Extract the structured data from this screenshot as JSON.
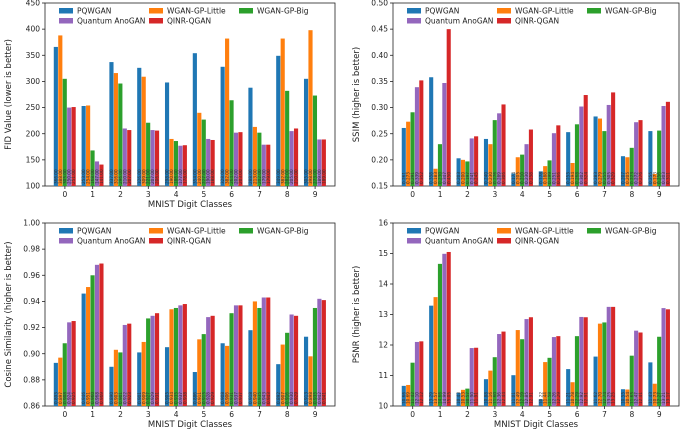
{
  "legend_labels": [
    "PQWGAN",
    "WGAN-GP-Little",
    "WGAN-GP-Big",
    "Quantum AnoGAN",
    "QINR-QGAN"
  ],
  "colors": [
    "#1f77b4",
    "#ff7f0e",
    "#2ca02c",
    "#9467bd",
    "#d62728"
  ],
  "chart_data": [
    {
      "type": "bar",
      "categories": [
        "0",
        "1",
        "2",
        "3",
        "4",
        "5",
        "6",
        "7",
        "8",
        "9"
      ],
      "xlabel": "MNIST Digit Classes",
      "ylabel": "FID Value (lower is better)",
      "ylim": [
        100,
        450
      ],
      "yticks": [
        "100",
        "150",
        "200",
        "250",
        "300",
        "350",
        "400",
        "450"
      ],
      "legend": "top",
      "series": [
        {
          "name": "PQWGAN",
          "values": [
            366,
            253,
            337,
            326,
            298,
            354,
            328,
            288,
            349,
            305
          ]
        },
        {
          "name": "WGAN-GP-Little",
          "values": [
            388,
            254,
            316,
            309,
            190,
            240,
            382,
            213,
            382,
            398
          ]
        },
        {
          "name": "WGAN-GP-Big",
          "values": [
            305,
            168,
            296,
            221,
            186,
            227,
            264,
            202,
            282,
            273
          ]
        },
        {
          "name": "Quantum AnoGAN",
          "values": [
            250,
            147,
            210,
            207,
            177,
            190,
            202,
            179,
            205,
            189
          ]
        },
        {
          "name": "QINR-QGAN",
          "values": [
            251,
            141,
            207,
            206,
            178,
            188,
            203,
            179,
            210,
            189
          ]
        }
      ]
    },
    {
      "type": "bar",
      "categories": [
        "0",
        "1",
        "2",
        "3",
        "4",
        "5",
        "6",
        "7",
        "8",
        "9"
      ],
      "xlabel": "",
      "ylabel": "SSIM (higher is better)",
      "ylim": [
        0.15,
        0.5
      ],
      "yticks": [
        "0.15",
        "0.20",
        "0.25",
        "0.30",
        "0.35",
        "0.40",
        "0.45",
        "0.50"
      ],
      "legend": "top",
      "series": [
        {
          "name": "PQWGAN",
          "values": [
            0.261,
            0.358,
            0.203,
            0.24,
            0.174,
            0.178,
            0.253,
            0.283,
            0.207,
            0.255
          ]
        },
        {
          "name": "WGAN-GP-Little",
          "values": [
            0.273,
            0.183,
            0.2,
            0.23,
            0.205,
            0.188,
            0.194,
            0.279,
            0.205,
            0.173
          ]
        },
        {
          "name": "WGAN-GP-Big",
          "values": [
            0.291,
            0.23,
            0.197,
            0.276,
            0.21,
            0.199,
            0.268,
            0.255,
            0.223,
            0.256
          ]
        },
        {
          "name": "Quantum AnoGAN",
          "values": [
            0.339,
            0.347,
            0.241,
            0.289,
            0.23,
            0.251,
            0.302,
            0.305,
            0.272,
            0.303
          ]
        },
        {
          "name": "QINR-QGAN",
          "values": [
            0.352,
            0.45,
            0.245,
            0.306,
            0.258,
            0.266,
            0.324,
            0.329,
            0.276,
            0.311
          ]
        }
      ]
    },
    {
      "type": "bar",
      "categories": [
        "0",
        "1",
        "2",
        "3",
        "4",
        "5",
        "6",
        "7",
        "8",
        "9"
      ],
      "xlabel": "MNIST Digit Classes",
      "ylabel": "Cosine Similarity (higher is better)",
      "ylim": [
        0.86,
        1.0
      ],
      "yticks": [
        "0.86",
        "0.88",
        "0.90",
        "0.92",
        "0.94",
        "0.96",
        "0.98",
        "1.00"
      ],
      "legend": "top",
      "series": [
        {
          "name": "PQWGAN",
          "values": [
            0.893,
            0.946,
            0.89,
            0.901,
            0.905,
            0.886,
            0.908,
            0.918,
            0.892,
            0.913
          ]
        },
        {
          "name": "WGAN-GP-Little",
          "values": [
            0.897,
            0.951,
            0.903,
            0.909,
            0.934,
            0.911,
            0.906,
            0.94,
            0.907,
            0.898
          ]
        },
        {
          "name": "WGAN-GP-Big",
          "values": [
            0.908,
            0.96,
            0.901,
            0.927,
            0.935,
            0.915,
            0.931,
            0.935,
            0.916,
            0.935
          ]
        },
        {
          "name": "Quantum AnoGAN",
          "values": [
            0.924,
            0.968,
            0.922,
            0.929,
            0.937,
            0.928,
            0.937,
            0.943,
            0.93,
            0.942
          ]
        },
        {
          "name": "QINR-QGAN",
          "values": [
            0.925,
            0.969,
            0.923,
            0.931,
            0.938,
            0.929,
            0.937,
            0.943,
            0.929,
            0.941
          ]
        }
      ]
    },
    {
      "type": "bar",
      "categories": [
        "0",
        "1",
        "2",
        "3",
        "4",
        "5",
        "6",
        "7",
        "8",
        "9"
      ],
      "xlabel": "MNIST Digit Classes",
      "ylabel": "PSNR (higher is better)",
      "ylim": [
        10,
        16
      ],
      "yticks": [
        "10",
        "11",
        "12",
        "13",
        "14",
        "15",
        "16"
      ],
      "legend": "top",
      "series": [
        {
          "name": "PQWGAN",
          "values": [
            10.66,
            13.29,
            10.43,
            10.88,
            11.01,
            10.22,
            11.21,
            11.62,
            10.55,
            11.43
          ]
        },
        {
          "name": "WGAN-GP-Little",
          "values": [
            10.69,
            13.57,
            10.53,
            11.16,
            12.49,
            11.44,
            10.78,
            12.7,
            10.54,
            10.73
          ]
        },
        {
          "name": "WGAN-GP-Big",
          "values": [
            11.42,
            14.66,
            10.57,
            11.6,
            12.19,
            11.58,
            12.29,
            12.74,
            11.65,
            12.27
          ]
        },
        {
          "name": "Quantum AnoGAN",
          "values": [
            12.1,
            14.99,
            11.9,
            12.36,
            12.85,
            12.26,
            12.92,
            13.25,
            12.47,
            13.21
          ]
        },
        {
          "name": "QINR-QGAN",
          "values": [
            12.12,
            15.05,
            11.91,
            12.44,
            12.91,
            12.29,
            12.91,
            13.25,
            12.41,
            13.17
          ]
        }
      ]
    }
  ]
}
